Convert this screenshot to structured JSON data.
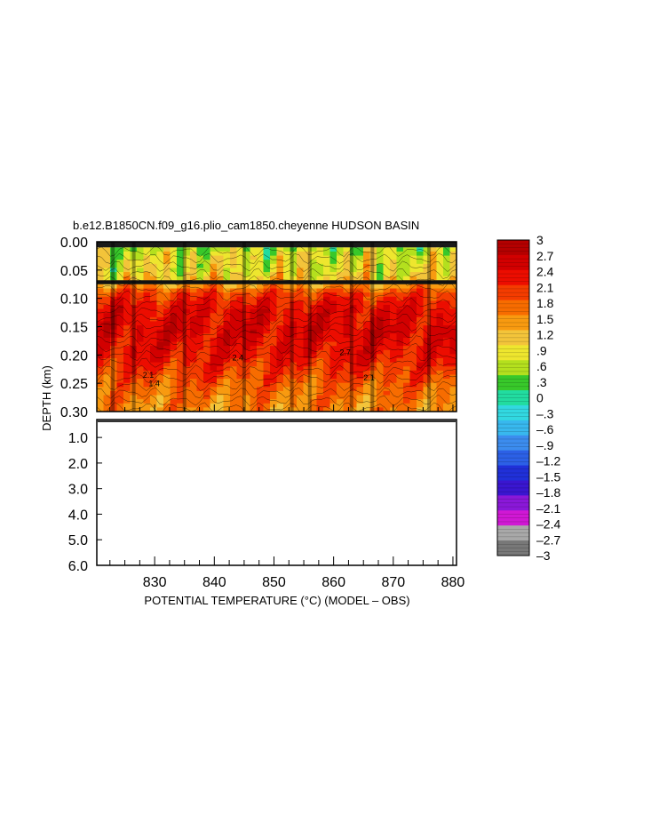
{
  "chart_data": {
    "type": "heatmap",
    "title": "b.e12.B1850CN.f09_g16.plio_cam1850.cheyenne HUDSON BASIN",
    "xlabel": "POTENTIAL TEMPERATURE (°C) (MODEL – OBS)",
    "ylabel": "DEPTH (km)",
    "x_ticks": [
      "830",
      "840",
      "850",
      "860",
      "870",
      "880"
    ],
    "x_tick_values": [
      830,
      840,
      850,
      860,
      870,
      880
    ],
    "xlim": [
      820.3,
      880.6
    ],
    "upper_panel": {
      "y_ticks": [
        "0.00",
        "0.05",
        "0.10",
        "0.15",
        "0.20",
        "0.25",
        "0.30"
      ],
      "y_tick_values": [
        0,
        0.05,
        0.1,
        0.15,
        0.2,
        0.25,
        0.3
      ],
      "ylim": [
        0.3,
        0
      ],
      "data_depth_range": [
        0.01,
        0.3
      ],
      "approx_profile": [
        {
          "depth": 0.01,
          "value": 0.6
        },
        {
          "depth": 0.03,
          "value": 0.9
        },
        {
          "depth": 0.05,
          "value": 0.9
        },
        {
          "depth": 0.07,
          "value": 1.2
        },
        {
          "depth": 0.09,
          "value": 2.1
        },
        {
          "depth": 0.12,
          "value": 2.5
        },
        {
          "depth": 0.16,
          "value": 2.6
        },
        {
          "depth": 0.2,
          "value": 2.4
        },
        {
          "depth": 0.23,
          "value": 2.1
        },
        {
          "depth": 0.26,
          "value": 1.8
        },
        {
          "depth": 0.3,
          "value": 1.6
        }
      ]
    },
    "lower_panel": {
      "y_ticks": [
        "1.0",
        "2.0",
        "3.0",
        "4.0",
        "5.0",
        "6.0"
      ],
      "y_tick_values": [
        1,
        2,
        3,
        4,
        5,
        6
      ],
      "ylim": [
        6.0,
        0.3
      ]
    },
    "colorbar": {
      "labels": [
        "3",
        "2.7",
        "2.4",
        "2.1",
        "1.8",
        "1.5",
        "1.2",
        ".9",
        ".6",
        ".3",
        "0",
        "–.3",
        "–.6",
        "–.9",
        "–1.2",
        "–1.5",
        "–1.8",
        "–2.1",
        "–2.4",
        "–2.7",
        "–3"
      ],
      "values": [
        3,
        2.7,
        2.4,
        2.1,
        1.8,
        1.5,
        1.2,
        0.9,
        0.6,
        0.3,
        0,
        -0.3,
        -0.6,
        -0.9,
        -1.2,
        -1.5,
        -1.8,
        -2.1,
        -2.4,
        -2.7,
        -3
      ],
      "colors": [
        "#b40000",
        "#d20000",
        "#ec0d00",
        "#f43c00",
        "#f76c00",
        "#f89a10",
        "#f3c43a",
        "#eee62e",
        "#b4e01e",
        "#38c82a",
        "#22dca0",
        "#32d8e0",
        "#38b8ee",
        "#3c8cee",
        "#2c60e6",
        "#2030d8",
        "#3a16d0",
        "#8a18d8",
        "#d018d4",
        "#a8a8a8",
        "#787878"
      ]
    },
    "contour_labels": [
      "2.4",
      "2.1",
      "1.4",
      "2.7",
      "2.1"
    ],
    "grid": false
  }
}
